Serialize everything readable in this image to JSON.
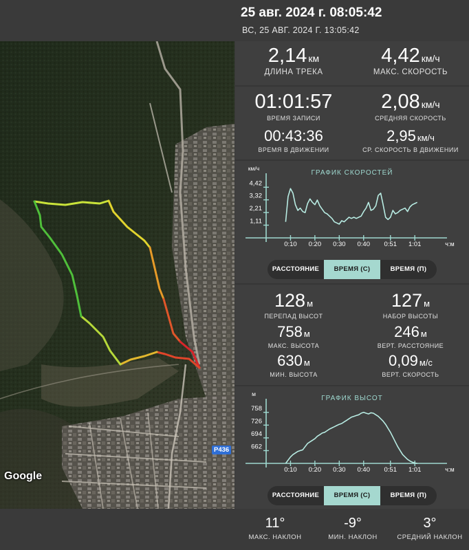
{
  "header": {
    "title": "25 авг. 2024 г. 08:05:42",
    "subtitle": "ВС, 25 АВГ. 2024 Г. 13:05:42"
  },
  "map": {
    "google_label": "Google",
    "road_label": "Р436"
  },
  "stats": {
    "track_length": {
      "value": "2,14",
      "unit": "км",
      "label": "ДЛИНА ТРЕКА"
    },
    "max_speed": {
      "value": "4,42",
      "unit": "км/ч",
      "label": "МАКС. СКОРОСТЬ"
    },
    "record_time": {
      "value": "01:01:57",
      "label": "ВРЕМЯ ЗАПИСИ"
    },
    "avg_speed": {
      "value": "2,08",
      "unit": "км/ч",
      "label": "СРЕДНЯЯ СКОРОСТЬ"
    },
    "moving_time": {
      "value": "00:43:36",
      "label": "ВРЕМЯ В ДВИЖЕНИИ"
    },
    "avg_moving_speed": {
      "value": "2,95",
      "unit": "км/ч",
      "label": "СР. СКОРОСТЬ В ДВИЖЕНИИ"
    },
    "elev_diff": {
      "value": "128",
      "unit": "м",
      "label": "ПЕРЕПАД ВЫСОТ"
    },
    "elev_gain": {
      "value": "127",
      "unit": "м",
      "label": "НАБОР ВЫСОТЫ"
    },
    "max_elev": {
      "value": "758",
      "unit": "м",
      "label": "МАКС. ВЫСОТА"
    },
    "vert_distance": {
      "value": "246",
      "unit": "м",
      "label": "ВЕРТ. РАССТОЯНИЕ"
    },
    "min_elev": {
      "value": "630",
      "unit": "м",
      "label": "МИН. ВЫСОТА"
    },
    "vert_speed": {
      "value": "0,09",
      "unit": "м/с",
      "label": "ВЕРТ. СКОРОСТЬ"
    }
  },
  "speed_toggle": {
    "options": [
      "РАССТОЯНИЕ",
      "ВРЕМЯ (С)",
      "ВРЕМЯ (П)"
    ],
    "active_index": 1
  },
  "elev_toggle": {
    "options": [
      "РАССТОЯНИЕ",
      "ВРЕМЯ (С)",
      "ВРЕМЯ (П)"
    ],
    "active_index": 1
  },
  "footer": {
    "max_slope": {
      "value": "11°",
      "label": "МАКС. НАКЛОН"
    },
    "min_slope": {
      "value": "-9°",
      "label": "МИН. НАКЛОН"
    },
    "avg_slope": {
      "value": "3°",
      "label": "СРЕДНИЙ НАКЛОН"
    }
  },
  "colors": {
    "accent": "#a5d8cf",
    "chart_line": "#b8ece3",
    "axis": "#9fd9d0"
  },
  "chart_data": [
    {
      "type": "line",
      "title": "ГРАФИК СКОРОСТЕЙ",
      "ylabel": "км/ч",
      "xlabel": "ч:м",
      "ylim": [
        0,
        4.8
      ],
      "xlim": [
        0,
        68
      ],
      "y_ticks": [
        "1,11",
        "2,21",
        "3,32",
        "4,42"
      ],
      "y_tick_values": [
        1.11,
        2.21,
        3.32,
        4.42
      ],
      "x_ticks": [
        "0:10",
        "0:20",
        "0:30",
        "0:40",
        "0:51",
        "1:01"
      ],
      "x_tick_values": [
        10,
        20,
        30,
        40,
        51,
        61
      ],
      "grid": false,
      "series": [
        {
          "x": [
            8,
            9,
            10,
            11,
            12,
            13,
            14,
            15,
            16,
            17,
            18,
            19,
            20,
            21,
            22,
            23,
            24,
            25,
            26,
            27,
            28,
            29,
            30,
            31,
            32,
            33,
            34,
            35,
            36,
            37,
            38,
            39,
            40,
            41,
            42,
            43,
            44,
            45,
            46,
            47,
            48,
            49,
            50,
            51,
            52,
            53,
            54,
            55,
            56,
            57,
            58,
            59,
            60,
            61,
            62
          ],
          "y": [
            1.4,
            3.6,
            4.3,
            3.9,
            2.9,
            2.4,
            2.6,
            2.3,
            2.2,
            3.0,
            3.4,
            3.1,
            2.9,
            3.3,
            2.8,
            2.5,
            2.2,
            2.1,
            1.9,
            1.7,
            1.4,
            1.3,
            1.2,
            1.5,
            1.4,
            1.6,
            1.8,
            1.7,
            1.8,
            1.7,
            1.8,
            1.9,
            2.3,
            2.6,
            3.1,
            2.4,
            2.5,
            2.8,
            3.7,
            3.9,
            2.9,
            1.8,
            1.6,
            1.8,
            2.4,
            2.1,
            2.2,
            2.4,
            2.5,
            2.6,
            2.3,
            2.7,
            2.9,
            3.0,
            3.1
          ]
        }
      ]
    },
    {
      "type": "line",
      "title": "ГРАФИК ВЫСОТ",
      "ylabel": "м",
      "xlabel": "ч:м",
      "ylim": [
        630,
        768
      ],
      "xlim": [
        0,
        68
      ],
      "y_ticks": [
        "662",
        "694",
        "726",
        "758"
      ],
      "y_tick_values": [
        662,
        694,
        726,
        758
      ],
      "x_ticks": [
        "0:10",
        "0:20",
        "0:30",
        "0:40",
        "0:51",
        "1:01"
      ],
      "x_tick_values": [
        10,
        20,
        30,
        40,
        51,
        61
      ],
      "grid": false,
      "series": [
        {
          "x": [
            8,
            9,
            10,
            11,
            12,
            13,
            14,
            15,
            16,
            17,
            18,
            19,
            20,
            21,
            22,
            23,
            24,
            25,
            26,
            27,
            28,
            29,
            30,
            31,
            32,
            33,
            34,
            35,
            36,
            37,
            38,
            39,
            40,
            41,
            42,
            43,
            44,
            45,
            46,
            47,
            48,
            49,
            50,
            51,
            52,
            53,
            54,
            55,
            56,
            57,
            58,
            59,
            60,
            61,
            62
          ],
          "y": [
            630,
            638,
            646,
            652,
            656,
            660,
            662,
            664,
            672,
            680,
            684,
            688,
            692,
            698,
            702,
            706,
            708,
            712,
            716,
            719,
            722,
            725,
            728,
            730,
            734,
            738,
            742,
            746,
            748,
            750,
            752,
            756,
            758,
            756,
            754,
            757,
            756,
            752,
            748,
            742,
            736,
            728,
            718,
            708,
            696,
            684,
            672,
            662,
            652,
            646,
            640,
            636,
            633,
            631,
            630
          ]
        }
      ]
    }
  ]
}
